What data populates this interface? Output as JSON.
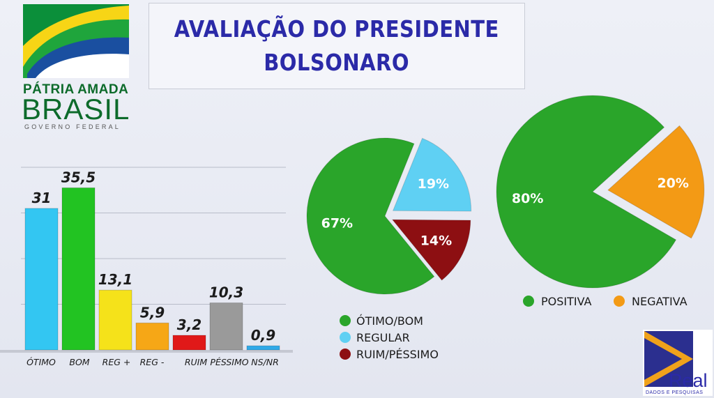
{
  "title": {
    "line1": "AVALIAÇÃO DO PRESIDENTE",
    "line2": "BOLSONARO"
  },
  "logo_left": {
    "line1": "PÁTRIA AMADA",
    "line2": "BRASIL",
    "line3": "GOVERNO FEDERAL"
  },
  "logo_right": {
    "name": "Real",
    "tagline": "DADOS E PESQUISAS"
  },
  "colors": {
    "title": "#2b2aa8",
    "otimo": "#33c6f2",
    "bom": "#22c322",
    "reg_plus": "#f5e21a",
    "reg_minus": "#f6a716",
    "ruim": "#e01919",
    "pessimo_nr": "#9a9a9a",
    "ns_nr": "#2fa9e8",
    "pie_green": "#2aa52a",
    "pie_blue": "#5fd0f3",
    "pie_red": "#8d0f12",
    "pie_orange": "#f39a15"
  },
  "chart_data": [
    {
      "type": "bar",
      "categories": [
        "ÓTIMO",
        "BOM",
        "REG +",
        "REG -",
        "RUIM",
        "PÉSSIMO",
        "NS/NR"
      ],
      "values": [
        31,
        35.5,
        13.1,
        5.9,
        3.2,
        10.3,
        0.9
      ],
      "value_labels": [
        "31",
        "35,5",
        "13,1",
        "5,9",
        "3,2",
        "10,3",
        "0,9"
      ],
      "ylim": [
        0,
        40
      ],
      "grid": true
    },
    {
      "type": "pie",
      "labels": [
        "ÓTIMO/BOM",
        "REGULAR",
        "RUIM/PÉSSIMO"
      ],
      "values": [
        67,
        19,
        14
      ],
      "value_labels": [
        "67%",
        "19%",
        "14%"
      ],
      "legend": "bottom"
    },
    {
      "type": "pie",
      "labels": [
        "POSITIVA",
        "NEGATIVA"
      ],
      "values": [
        80,
        20
      ],
      "value_labels": [
        "80%",
        "20%"
      ],
      "legend": "bottom"
    }
  ]
}
